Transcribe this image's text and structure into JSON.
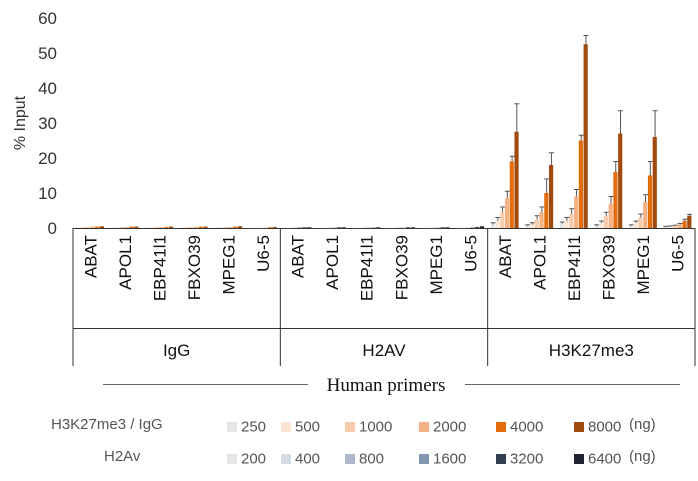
{
  "chart_data": {
    "type": "bar",
    "title": "",
    "xlabel": "Human primers",
    "ylabel": "% Input",
    "ylim": [
      0,
      60
    ],
    "yticks": [
      0,
      10,
      20,
      30,
      40,
      50,
      60
    ],
    "groups": [
      {
        "name": "IgG",
        "categories": [
          "ABAT",
          "APOL1",
          "EBP41l1",
          "FBXO39",
          "MPEG1",
          "U6-5"
        ],
        "series_set": "chip",
        "values": [
          [
            0.2,
            0.3,
            0.3,
            0.4,
            0.4,
            0.5
          ],
          [
            0.2,
            0.2,
            0.3,
            0.3,
            0.4,
            0.4
          ],
          [
            0.2,
            0.2,
            0.3,
            0.3,
            0.3,
            0.4
          ],
          [
            0.2,
            0.2,
            0.3,
            0.3,
            0.4,
            0.4
          ],
          [
            0.2,
            0.3,
            0.3,
            0.3,
            0.4,
            0.5
          ],
          [
            0.1,
            0.1,
            0.1,
            0.1,
            0.2,
            0.3
          ]
        ]
      },
      {
        "name": "H2AV",
        "categories": [
          "ABAT",
          "APOL1",
          "EBP41l1",
          "FBXO39",
          "MPEG1",
          "U6-5"
        ],
        "series_set": "h2av",
        "values": [
          [
            0.1,
            0.1,
            0.1,
            0.2,
            0.2,
            0.2
          ],
          [
            0.1,
            0.1,
            0.1,
            0.1,
            0.2,
            0.2
          ],
          [
            0.1,
            0.1,
            0.1,
            0.1,
            0.1,
            0.2
          ],
          [
            0.1,
            0.1,
            0.1,
            0.1,
            0.2,
            0.2
          ],
          [
            0.1,
            0.1,
            0.1,
            0.1,
            0.2,
            0.2
          ],
          [
            0.1,
            0.1,
            0.1,
            0.2,
            0.3,
            0.5
          ]
        ]
      },
      {
        "name": "H3K27me3",
        "categories": [
          "ABAT",
          "APOL1",
          "EBP41l1",
          "FBXO39",
          "MPEG1",
          "U6-5"
        ],
        "series_set": "chip",
        "values": [
          [
            1.0,
            2.0,
            4.5,
            8.5,
            19.0,
            27.5
          ],
          [
            0.6,
            1.0,
            2.5,
            4.5,
            10.0,
            18.0
          ],
          [
            1.2,
            2.0,
            4.0,
            9.0,
            25.0,
            52.5
          ],
          [
            0.6,
            1.5,
            3.5,
            7.0,
            16.0,
            27.0
          ],
          [
            0.6,
            1.5,
            3.0,
            7.5,
            15.0,
            26.0
          ],
          [
            0.3,
            0.4,
            0.6,
            1.0,
            2.0,
            3.5
          ]
        ],
        "errors": [
          [
            0.5,
            1.0,
            1.5,
            2.0,
            1.5,
            8.0
          ],
          [
            0.3,
            0.5,
            1.0,
            1.5,
            4.0,
            3.5
          ],
          [
            0.5,
            1.0,
            1.5,
            2.0,
            1.5,
            2.5
          ],
          [
            0.3,
            0.5,
            1.0,
            2.0,
            3.0,
            6.5
          ],
          [
            0.3,
            0.5,
            1.0,
            2.0,
            4.0,
            7.5
          ],
          [
            0.2,
            0.2,
            0.2,
            0.3,
            0.5,
            0.4
          ]
        ]
      }
    ],
    "legend": [
      {
        "label": "H3K27me3 / IgG",
        "unit": "(ng)",
        "series": [
          {
            "name": "250",
            "color": "#e7e6e6"
          },
          {
            "name": "500",
            "color": "#fce4d6"
          },
          {
            "name": "1000",
            "color": "#f8cbad"
          },
          {
            "name": "2000",
            "color": "#f4b183"
          },
          {
            "name": "4000",
            "color": "#e46c0a"
          },
          {
            "name": "8000",
            "color": "#a04a0e"
          }
        ]
      },
      {
        "label": "H2Av",
        "unit": "(ng)",
        "series": [
          {
            "name": "200",
            "color": "#e7e6e6"
          },
          {
            "name": "400",
            "color": "#d6dce4"
          },
          {
            "name": "800",
            "color": "#adb9ca"
          },
          {
            "name": "1600",
            "color": "#8497b0"
          },
          {
            "name": "3200",
            "color": "#333f50"
          },
          {
            "name": "6400",
            "color": "#1f2430"
          }
        ]
      }
    ]
  }
}
